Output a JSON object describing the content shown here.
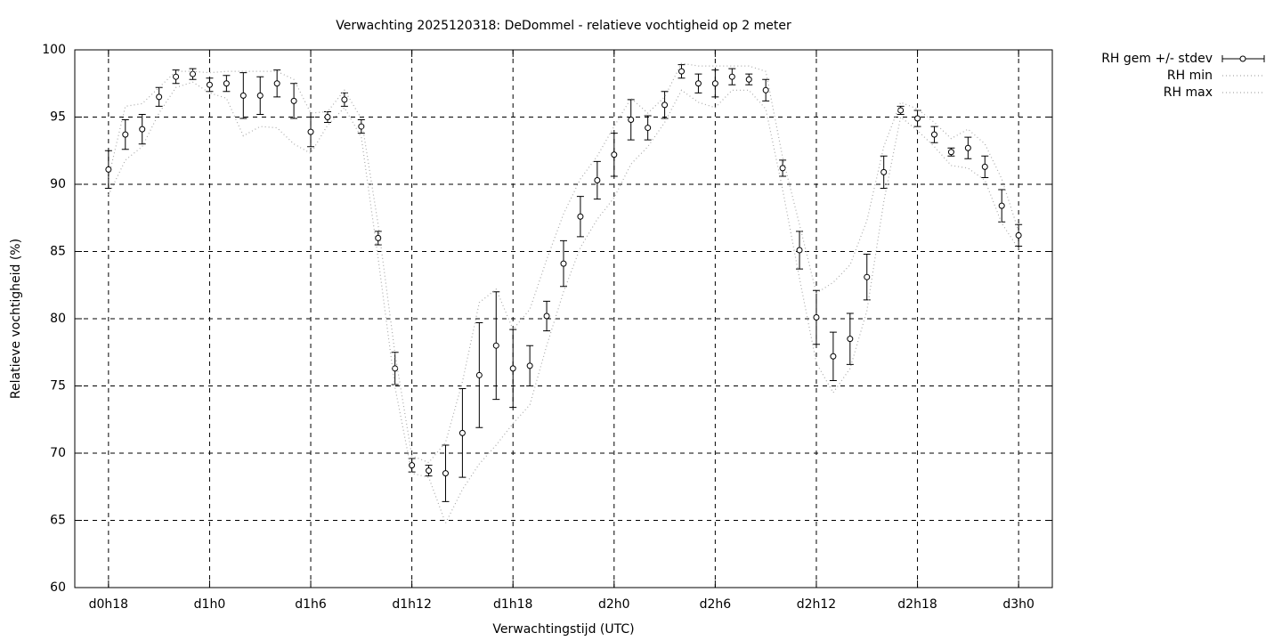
{
  "chart_data": {
    "type": "errorbar",
    "title": "Verwachting 2025120318: DeDommel - relatieve vochtigheid op 2 meter",
    "x_label": "Verwachtingstijd (UTC)",
    "y_label": "Relatieve vochtigheid (%)",
    "x": [
      18,
      19,
      20,
      21,
      22,
      23,
      24,
      25,
      26,
      27,
      28,
      29,
      30,
      31,
      32,
      33,
      34,
      35,
      36,
      37,
      38,
      39,
      40,
      41,
      42,
      43,
      44,
      45,
      46,
      47,
      48,
      49,
      50,
      51,
      52,
      53,
      54,
      55,
      56,
      57,
      58,
      59,
      60,
      61,
      62,
      63,
      64,
      65,
      66,
      67,
      68,
      69,
      70,
      71,
      72
    ],
    "series": [
      {
        "name": "RH gem +/- stdev",
        "color": "#000000",
        "values": [
          91.1,
          93.7,
          94.1,
          96.5,
          98.0,
          98.2,
          97.4,
          97.5,
          96.6,
          96.6,
          97.5,
          96.2,
          93.9,
          95.0,
          96.3,
          94.3,
          86.0,
          76.3,
          69.1,
          68.7,
          68.5,
          71.5,
          75.8,
          78.0,
          76.3,
          76.5,
          80.2,
          84.1,
          87.6,
          90.3,
          92.2,
          94.8,
          94.2,
          95.9,
          98.4,
          97.5,
          97.5,
          98.0,
          97.8,
          97.0,
          91.2,
          85.1,
          80.1,
          77.2,
          78.5,
          83.1,
          90.9,
          95.5,
          94.9,
          93.7,
          92.4,
          92.7,
          91.3,
          88.4,
          86.2
        ],
        "errors": [
          1.4,
          1.1,
          1.1,
          0.7,
          0.5,
          0.4,
          0.5,
          0.6,
          1.7,
          1.4,
          1.0,
          1.3,
          1.1,
          0.4,
          0.5,
          0.5,
          0.5,
          1.2,
          0.5,
          0.4,
          2.1,
          3.3,
          3.9,
          4.0,
          2.9,
          1.5,
          1.1,
          1.7,
          1.5,
          1.4,
          1.6,
          1.5,
          0.9,
          1.0,
          0.5,
          0.7,
          1.0,
          0.6,
          0.4,
          0.8,
          0.6,
          1.4,
          2.0,
          1.8,
          1.9,
          1.7,
          1.2,
          0.3,
          0.6,
          0.6,
          0.3,
          0.8,
          0.8,
          1.2,
          0.8
        ]
      },
      {
        "name": "RH min",
        "color": "#aaaaaa",
        "values": [
          89.2,
          91.8,
          92.8,
          95.3,
          97.2,
          97.6,
          96.8,
          96.4,
          93.6,
          94.3,
          94.2,
          93.0,
          92.3,
          94.4,
          95.7,
          93.5,
          84.5,
          74.9,
          68.5,
          68.2,
          64.8,
          67.3,
          69.2,
          70.6,
          72.2,
          73.6,
          78.0,
          82.0,
          85.3,
          87.4,
          89.0,
          91.5,
          92.8,
          94.6,
          97.0,
          96.1,
          95.7,
          97.0,
          97.0,
          95.6,
          89.6,
          83.0,
          76.7,
          74.5,
          76.3,
          80.6,
          88.7,
          95.0,
          94.0,
          92.8,
          91.4,
          91.2,
          90.3,
          87.1,
          85.2
        ]
      },
      {
        "name": "RH max",
        "color": "#aaaaaa",
        "values": [
          90.5,
          95.8,
          96.0,
          97.2,
          98.4,
          98.4,
          98.3,
          98.4,
          98.4,
          98.4,
          98.4,
          97.8,
          95.3,
          95.4,
          97.0,
          94.9,
          87.0,
          77.4,
          69.8,
          69.3,
          70.8,
          75.3,
          81.2,
          82.2,
          79.2,
          80.7,
          84.4,
          87.8,
          90.4,
          92.1,
          94.3,
          96.4,
          95.3,
          96.5,
          99.0,
          98.8,
          98.8,
          98.8,
          98.8,
          98.4,
          92.0,
          87.0,
          81.9,
          82.7,
          84.0,
          87.3,
          92.8,
          96.1,
          95.6,
          94.6,
          93.4,
          94.1,
          93.0,
          90.4,
          86.5
        ]
      }
    ],
    "xlim": [
      16,
      74
    ],
    "xticks": [
      {
        "value": 18,
        "label": "d0h18"
      },
      {
        "value": 24,
        "label": "d1h0"
      },
      {
        "value": 30,
        "label": "d1h6"
      },
      {
        "value": 36,
        "label": "d1h12"
      },
      {
        "value": 42,
        "label": "d1h18"
      },
      {
        "value": 48,
        "label": "d2h0"
      },
      {
        "value": 54,
        "label": "d2h6"
      },
      {
        "value": 60,
        "label": "d2h12"
      },
      {
        "value": 66,
        "label": "d2h18"
      },
      {
        "value": 72,
        "label": "d3h0"
      }
    ],
    "ylim": [
      60,
      100
    ],
    "yticks": [
      60,
      65,
      70,
      75,
      80,
      85,
      90,
      95,
      100
    ],
    "grid": true,
    "legend": "outside-right"
  }
}
